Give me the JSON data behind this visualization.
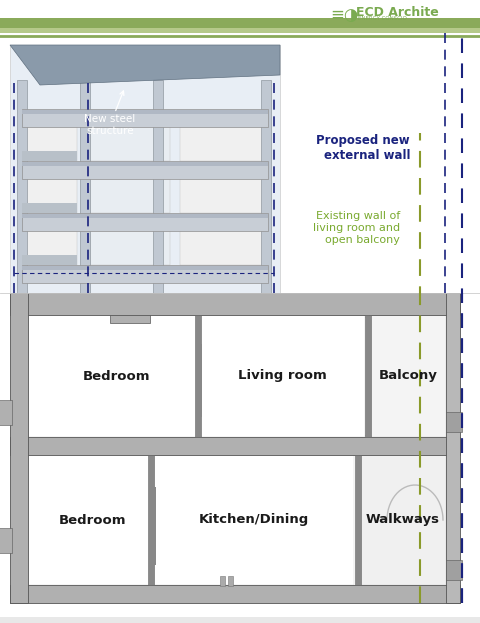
{
  "bg_color": "#ffffff",
  "header_green_dark": "#8aaa5a",
  "header_green_light": "#b5c98a",
  "logo_color": "#7aaa50",
  "dashed_blue": "#1a237e",
  "dashed_green": "#8a9a2a",
  "annotation_blue": "#1a237e",
  "annotation_green": "#7aaa30",
  "wall_color": "#aaaaaa",
  "wall_light": "#cccccc",
  "wall_dark": "#888888",
  "room_fill": "#ffffff",
  "balcony_fill": "#f0f0f0",
  "slab_color": "#b0b0b0",
  "img_bg": "#e8eef5",
  "img_roof": "#9aabba",
  "img_floor_light": "#d8dde4",
  "img_floor_dark": "#9aabba",
  "img_wall_color": "#c8cfd8",
  "new_steel_annotation": "New steel\nstructure",
  "proposed_annotation": "Proposed new\nexternal wall",
  "existing_wall_annotation": "Existing wall of\nliving room and\nopen balcony"
}
